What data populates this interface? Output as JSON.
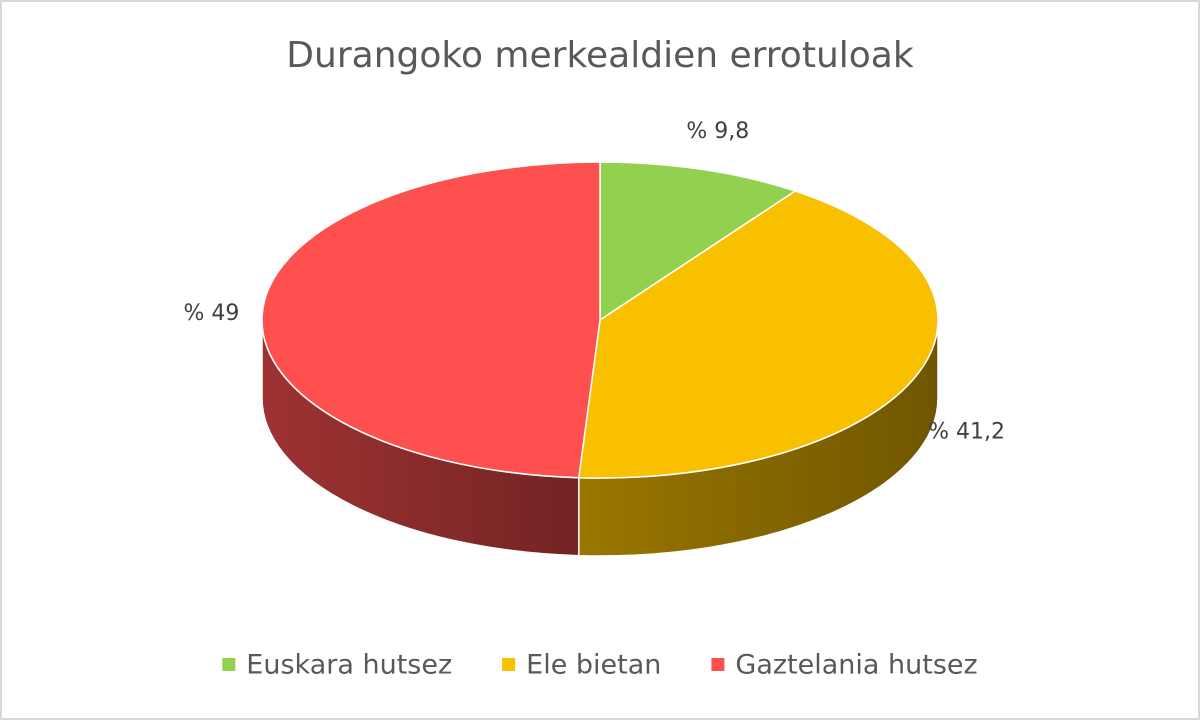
{
  "chart_data": {
    "type": "pie",
    "title": "Durangoko merkealdien errotuloak",
    "categories": [
      "Euskara hutsez",
      "Ele bietan",
      "Gaztelania hutsez"
    ],
    "values": [
      9.8,
      41.2,
      49
    ],
    "value_labels": [
      "% 9,8",
      "% 41,2",
      "% 49"
    ],
    "colors": [
      "#92d050",
      "#f9c000",
      "#ff5050"
    ],
    "legend": "bottom"
  }
}
